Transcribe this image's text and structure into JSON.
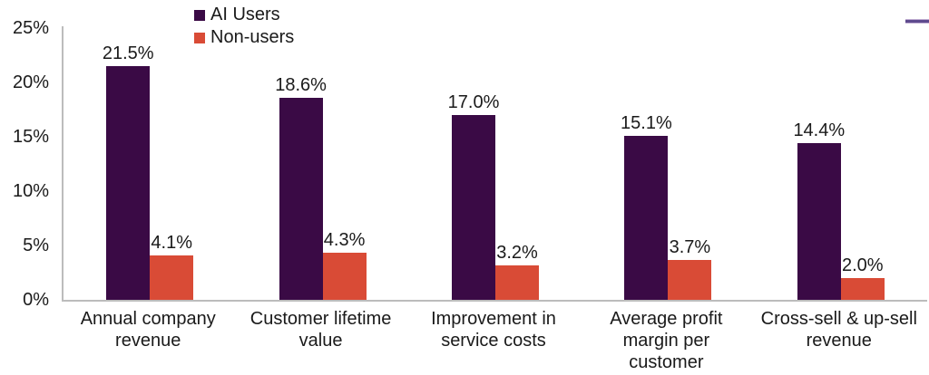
{
  "chart_data": {
    "type": "bar",
    "categories": [
      "Annual company revenue",
      "Customer lifetime value",
      "Improvement in service costs",
      "Average profit margin per customer",
      "Cross-sell & up-sell revenue"
    ],
    "category_lines": [
      [
        "Annual company",
        "revenue"
      ],
      [
        "Customer lifetime",
        "value"
      ],
      [
        "Improvement in",
        "service costs"
      ],
      [
        "Average profit",
        "margin per",
        "customer"
      ],
      [
        "Cross-sell & up-sell",
        "revenue"
      ]
    ],
    "series": [
      {
        "name": "AI Users",
        "color": "#3a0a45",
        "values": [
          21.5,
          18.6,
          17.0,
          15.1,
          14.4
        ],
        "labels": [
          "21.5%",
          "18.6%",
          "17.0%",
          "15.1%",
          "14.4%"
        ]
      },
      {
        "name": "Non-users",
        "color": "#d94b36",
        "values": [
          4.1,
          4.3,
          3.2,
          3.7,
          2.0
        ],
        "labels": [
          "4.1%",
          "4.3%",
          "3.2%",
          "3.7%",
          "2.0%"
        ]
      }
    ],
    "title": "",
    "xlabel": "",
    "ylabel": "",
    "ylim": [
      0,
      25
    ],
    "yticks": [
      "0%",
      "5%",
      "10%",
      "15%",
      "20%",
      "25%"
    ],
    "grid": false,
    "legend_position": "top-left"
  },
  "decor": {
    "accent_line_dark": "#5e4a8e",
    "accent_line_light": "#c0aed2",
    "axis_color": "#bcbcbc",
    "text_color": "#1a1a1a",
    "background": "#ffffff"
  }
}
